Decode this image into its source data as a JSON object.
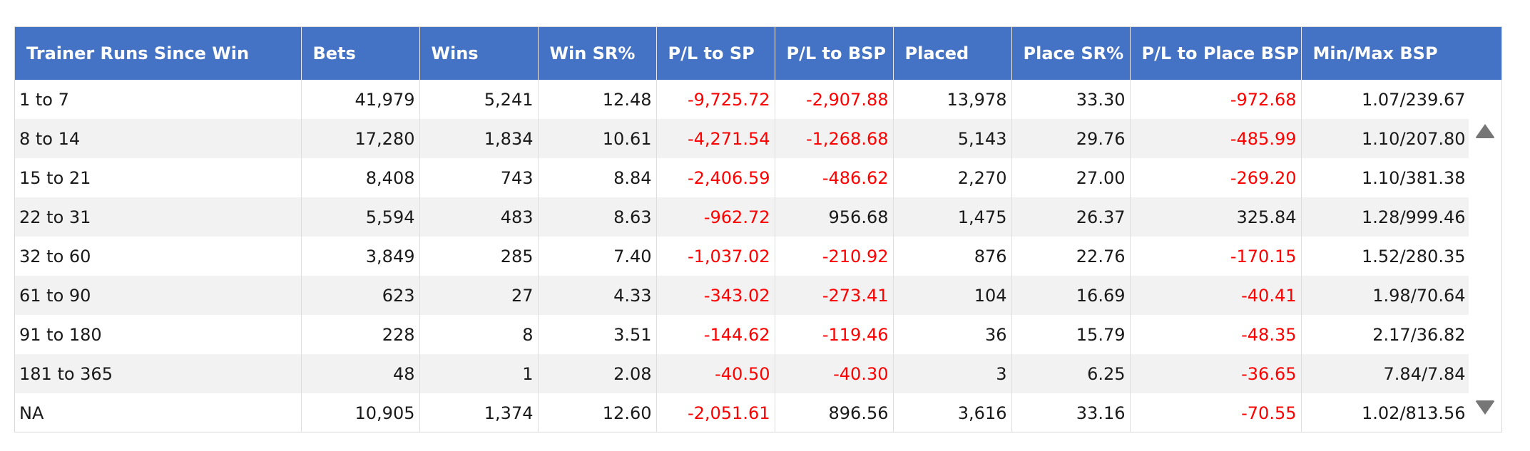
{
  "table": {
    "columns": [
      "Trainer Runs Since Win",
      "Bets",
      "Wins",
      "Win SR%",
      "P/L to SP",
      "P/L to BSP",
      "Placed",
      "Place SR%",
      "P/L to Place BSP",
      "Min/Max BSP"
    ],
    "rows": [
      [
        "1 to 7",
        "41,979",
        "5,241",
        "12.48",
        "-9,725.72",
        "-2,907.88",
        "13,978",
        "33.30",
        "-972.68",
        "1.07/239.67"
      ],
      [
        "8 to 14",
        "17,280",
        "1,834",
        "10.61",
        "-4,271.54",
        "-1,268.68",
        "5,143",
        "29.76",
        "-485.99",
        "1.10/207.80"
      ],
      [
        "15 to 21",
        "8,408",
        "743",
        "8.84",
        "-2,406.59",
        "-486.62",
        "2,270",
        "27.00",
        "-269.20",
        "1.10/381.38"
      ],
      [
        "22 to 31",
        "5,594",
        "483",
        "8.63",
        "-962.72",
        "956.68",
        "1,475",
        "26.37",
        "325.84",
        "1.28/999.46"
      ],
      [
        "32 to 60",
        "3,849",
        "285",
        "7.40",
        "-1,037.02",
        "-210.92",
        "876",
        "22.76",
        "-170.15",
        "1.52/280.35"
      ],
      [
        "61 to 90",
        "623",
        "27",
        "4.33",
        "-343.02",
        "-273.41",
        "104",
        "16.69",
        "-40.41",
        "1.98/70.64"
      ],
      [
        "91 to 180",
        "228",
        "8",
        "3.51",
        "-144.62",
        "-119.46",
        "36",
        "15.79",
        "-48.35",
        "2.17/36.82"
      ],
      [
        "181 to 365",
        "48",
        "1",
        "2.08",
        "-40.50",
        "-40.30",
        "3",
        "6.25",
        "-36.65",
        "7.84/7.84"
      ],
      [
        "NA",
        "10,905",
        "1,374",
        "12.60",
        "-2,051.61",
        "896.56",
        "3,616",
        "33.16",
        "-70.55",
        "1.02/813.56"
      ]
    ]
  },
  "scrollbar": {
    "up_icon": "triangle-up-icon",
    "down_icon": "triangle-down-icon"
  },
  "colors": {
    "header_bg": "#4472c4",
    "header_text": "#ffffff",
    "negative_text": "#ff0000",
    "row_alt_bg": "#f2f2f2",
    "scroll_arrow": "#767676"
  }
}
